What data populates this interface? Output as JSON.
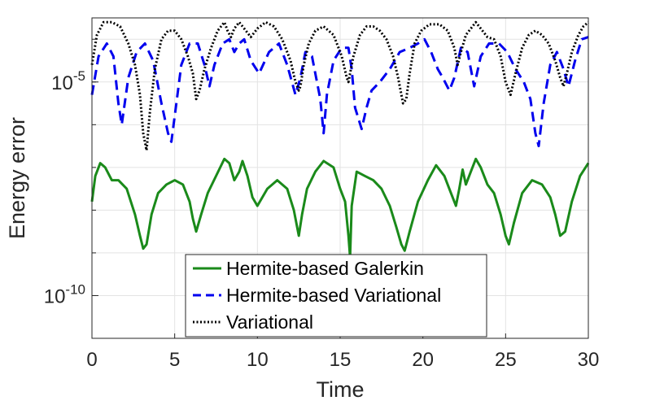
{
  "chart_data": {
    "type": "line",
    "title": "",
    "xlabel": "Time",
    "ylabel": "Energy error",
    "xlim": [
      0,
      30
    ],
    "ylim_log10": [
      -11,
      -3.5
    ],
    "yscale": "log",
    "grid": true,
    "legend_position": "bottom-center",
    "x_ticks": [
      "0",
      "5",
      "10",
      "15",
      "20",
      "25",
      "30"
    ],
    "y_ticks": [
      {
        "base": "10",
        "exp": "-5",
        "log10": -5
      },
      {
        "base": "10",
        "exp": "-10",
        "log10": -10
      }
    ],
    "colors": {
      "galerkin": "#1a8a1a",
      "hermite_variational": "#0000ee",
      "variational": "#000000"
    },
    "series": [
      {
        "name": "Hermite-based Galerkin",
        "style": "solid",
        "color": "#1a8a1a",
        "x": [
          0.0,
          0.2,
          0.5,
          0.8,
          1.2,
          1.6,
          2.1,
          2.6,
          2.9,
          3.1,
          3.3,
          3.6,
          4.0,
          4.5,
          5.0,
          5.5,
          5.9,
          6.1,
          6.3,
          6.6,
          7.0,
          7.5,
          8.0,
          8.3,
          8.6,
          8.9,
          9.1,
          9.4,
          9.7,
          10.0,
          10.6,
          11.2,
          11.8,
          12.2,
          12.5,
          12.7,
          13.0,
          13.5,
          14.0,
          14.6,
          15.0,
          15.3,
          15.5,
          15.6,
          15.7,
          16.0,
          16.5,
          17.0,
          17.5,
          18.0,
          18.4,
          18.7,
          18.9,
          19.2,
          19.7,
          20.3,
          20.8,
          21.3,
          21.7,
          22.0,
          22.2,
          22.4,
          22.6,
          22.9,
          23.2,
          23.5,
          23.9,
          24.3,
          24.7,
          25.0,
          25.2,
          25.5,
          26.0,
          26.6,
          27.2,
          27.7,
          28.0,
          28.3,
          28.6,
          29.0,
          29.5,
          30.0
        ],
        "y_log10": [
          -7.8,
          -7.2,
          -6.9,
          -7.0,
          -7.3,
          -7.3,
          -7.5,
          -8.1,
          -8.6,
          -8.9,
          -8.8,
          -8.1,
          -7.6,
          -7.4,
          -7.3,
          -7.4,
          -7.8,
          -8.2,
          -8.5,
          -8.1,
          -7.6,
          -7.2,
          -6.8,
          -6.9,
          -7.3,
          -7.1,
          -6.85,
          -7.2,
          -7.7,
          -7.9,
          -7.5,
          -7.3,
          -7.5,
          -8.0,
          -8.6,
          -8.1,
          -7.5,
          -7.1,
          -6.85,
          -7.0,
          -7.5,
          -7.8,
          -8.6,
          -9.1,
          -7.9,
          -7.1,
          -7.2,
          -7.3,
          -7.5,
          -7.9,
          -8.4,
          -8.8,
          -8.95,
          -8.5,
          -7.8,
          -7.3,
          -6.95,
          -7.2,
          -7.6,
          -7.9,
          -7.5,
          -7.05,
          -7.4,
          -7.1,
          -6.8,
          -7.0,
          -7.4,
          -7.6,
          -8.1,
          -8.6,
          -8.8,
          -8.3,
          -7.6,
          -7.3,
          -7.4,
          -7.7,
          -8.1,
          -8.6,
          -8.5,
          -7.8,
          -7.2,
          -6.9
        ]
      },
      {
        "name": "Hermite-based Variational",
        "style": "dashed",
        "color": "#0000ee",
        "x": [
          0.0,
          0.4,
          0.9,
          1.3,
          1.6,
          1.8,
          2.2,
          2.7,
          3.2,
          3.7,
          4.2,
          4.6,
          4.8,
          5.0,
          5.4,
          5.9,
          6.4,
          6.8,
          7.1,
          7.4,
          7.9,
          8.3,
          8.6,
          8.9,
          9.2,
          9.6,
          10.1,
          10.7,
          11.3,
          11.8,
          12.3,
          12.6,
          12.9,
          13.3,
          13.8,
          14.0,
          14.2,
          14.6,
          15.1,
          15.5,
          15.7,
          15.9,
          16.3,
          16.6,
          16.9,
          17.4,
          18.0,
          18.6,
          19.2,
          19.7,
          20.1,
          20.5,
          20.9,
          21.2,
          21.6,
          21.9,
          22.3,
          22.7,
          23.1,
          23.5,
          24.0,
          24.6,
          25.1,
          25.6,
          26.1,
          26.5,
          26.8,
          27.0,
          27.3,
          27.7,
          28.1,
          28.5,
          28.8,
          29.2,
          29.6,
          30.0
        ],
        "y_log10": [
          -5.3,
          -4.4,
          -4.1,
          -4.4,
          -5.5,
          -6.0,
          -4.9,
          -4.3,
          -4.1,
          -4.5,
          -5.5,
          -6.2,
          -6.4,
          -5.8,
          -4.6,
          -4.1,
          -4.1,
          -4.6,
          -5.1,
          -4.6,
          -4.1,
          -4.0,
          -4.3,
          -4.1,
          -4.0,
          -4.5,
          -4.8,
          -4.3,
          -4.1,
          -4.6,
          -5.3,
          -4.9,
          -4.3,
          -4.4,
          -5.4,
          -6.2,
          -5.3,
          -4.5,
          -4.2,
          -4.2,
          -4.7,
          -5.6,
          -6.1,
          -5.6,
          -5.2,
          -5.0,
          -4.7,
          -4.3,
          -4.2,
          -4.1,
          -4.0,
          -4.3,
          -4.7,
          -4.9,
          -5.2,
          -4.9,
          -4.2,
          -4.3,
          -5.1,
          -4.4,
          -4.1,
          -4.1,
          -4.3,
          -4.7,
          -5.0,
          -5.4,
          -6.2,
          -6.5,
          -5.5,
          -4.6,
          -4.3,
          -4.7,
          -5.1,
          -4.5,
          -4.0,
          -3.95
        ]
      },
      {
        "name": "Variational",
        "style": "dotted",
        "color": "#000000",
        "x": [
          0.0,
          0.3,
          0.7,
          1.2,
          1.7,
          2.2,
          2.6,
          2.9,
          3.1,
          3.3,
          3.5,
          3.8,
          4.2,
          4.6,
          5.0,
          5.4,
          5.8,
          6.1,
          6.3,
          6.5,
          6.8,
          7.2,
          7.6,
          8.0,
          8.2,
          8.4,
          8.6,
          8.9,
          9.2,
          9.6,
          10.0,
          10.5,
          11.0,
          11.5,
          12.0,
          12.3,
          12.5,
          12.6,
          12.8,
          13.1,
          13.5,
          14.0,
          14.6,
          15.1,
          15.4,
          15.5,
          15.6,
          15.8,
          16.2,
          16.6,
          17.0,
          17.4,
          17.8,
          18.2,
          18.5,
          18.8,
          19.0,
          19.2,
          19.5,
          19.9,
          20.4,
          21.0,
          21.5,
          21.9,
          22.1,
          22.3,
          22.6,
          22.9,
          23.2,
          23.5,
          23.9,
          24.3,
          24.7,
          25.0,
          25.3,
          25.6,
          26.0,
          26.4,
          26.8,
          27.2,
          27.6,
          28.0,
          28.3,
          28.5,
          28.7,
          29.0,
          29.4,
          29.7,
          30.0
        ],
        "y_log10": [
          -4.6,
          -3.9,
          -3.6,
          -3.6,
          -3.7,
          -4.1,
          -4.6,
          -5.3,
          -6.2,
          -6.6,
          -5.7,
          -4.7,
          -4.0,
          -3.8,
          -3.8,
          -4.0,
          -4.4,
          -4.8,
          -5.4,
          -5.2,
          -4.7,
          -4.2,
          -3.8,
          -3.6,
          -3.8,
          -3.95,
          -3.75,
          -3.6,
          -3.75,
          -3.95,
          -3.75,
          -3.6,
          -3.7,
          -4.0,
          -4.5,
          -5.0,
          -5.2,
          -5.1,
          -4.6,
          -4.1,
          -3.8,
          -3.7,
          -3.9,
          -4.4,
          -4.9,
          -5.0,
          -4.8,
          -4.4,
          -3.9,
          -3.7,
          -3.7,
          -3.8,
          -4.0,
          -4.4,
          -4.9,
          -5.5,
          -5.4,
          -4.8,
          -4.1,
          -3.8,
          -3.65,
          -3.65,
          -3.8,
          -4.2,
          -4.6,
          -4.3,
          -3.9,
          -3.75,
          -3.6,
          -3.75,
          -3.95,
          -4.0,
          -4.4,
          -5.0,
          -5.3,
          -4.8,
          -4.2,
          -3.9,
          -3.8,
          -3.9,
          -4.1,
          -4.5,
          -4.9,
          -5.1,
          -4.8,
          -4.3,
          -3.9,
          -3.7,
          -3.6
        ]
      }
    ]
  }
}
